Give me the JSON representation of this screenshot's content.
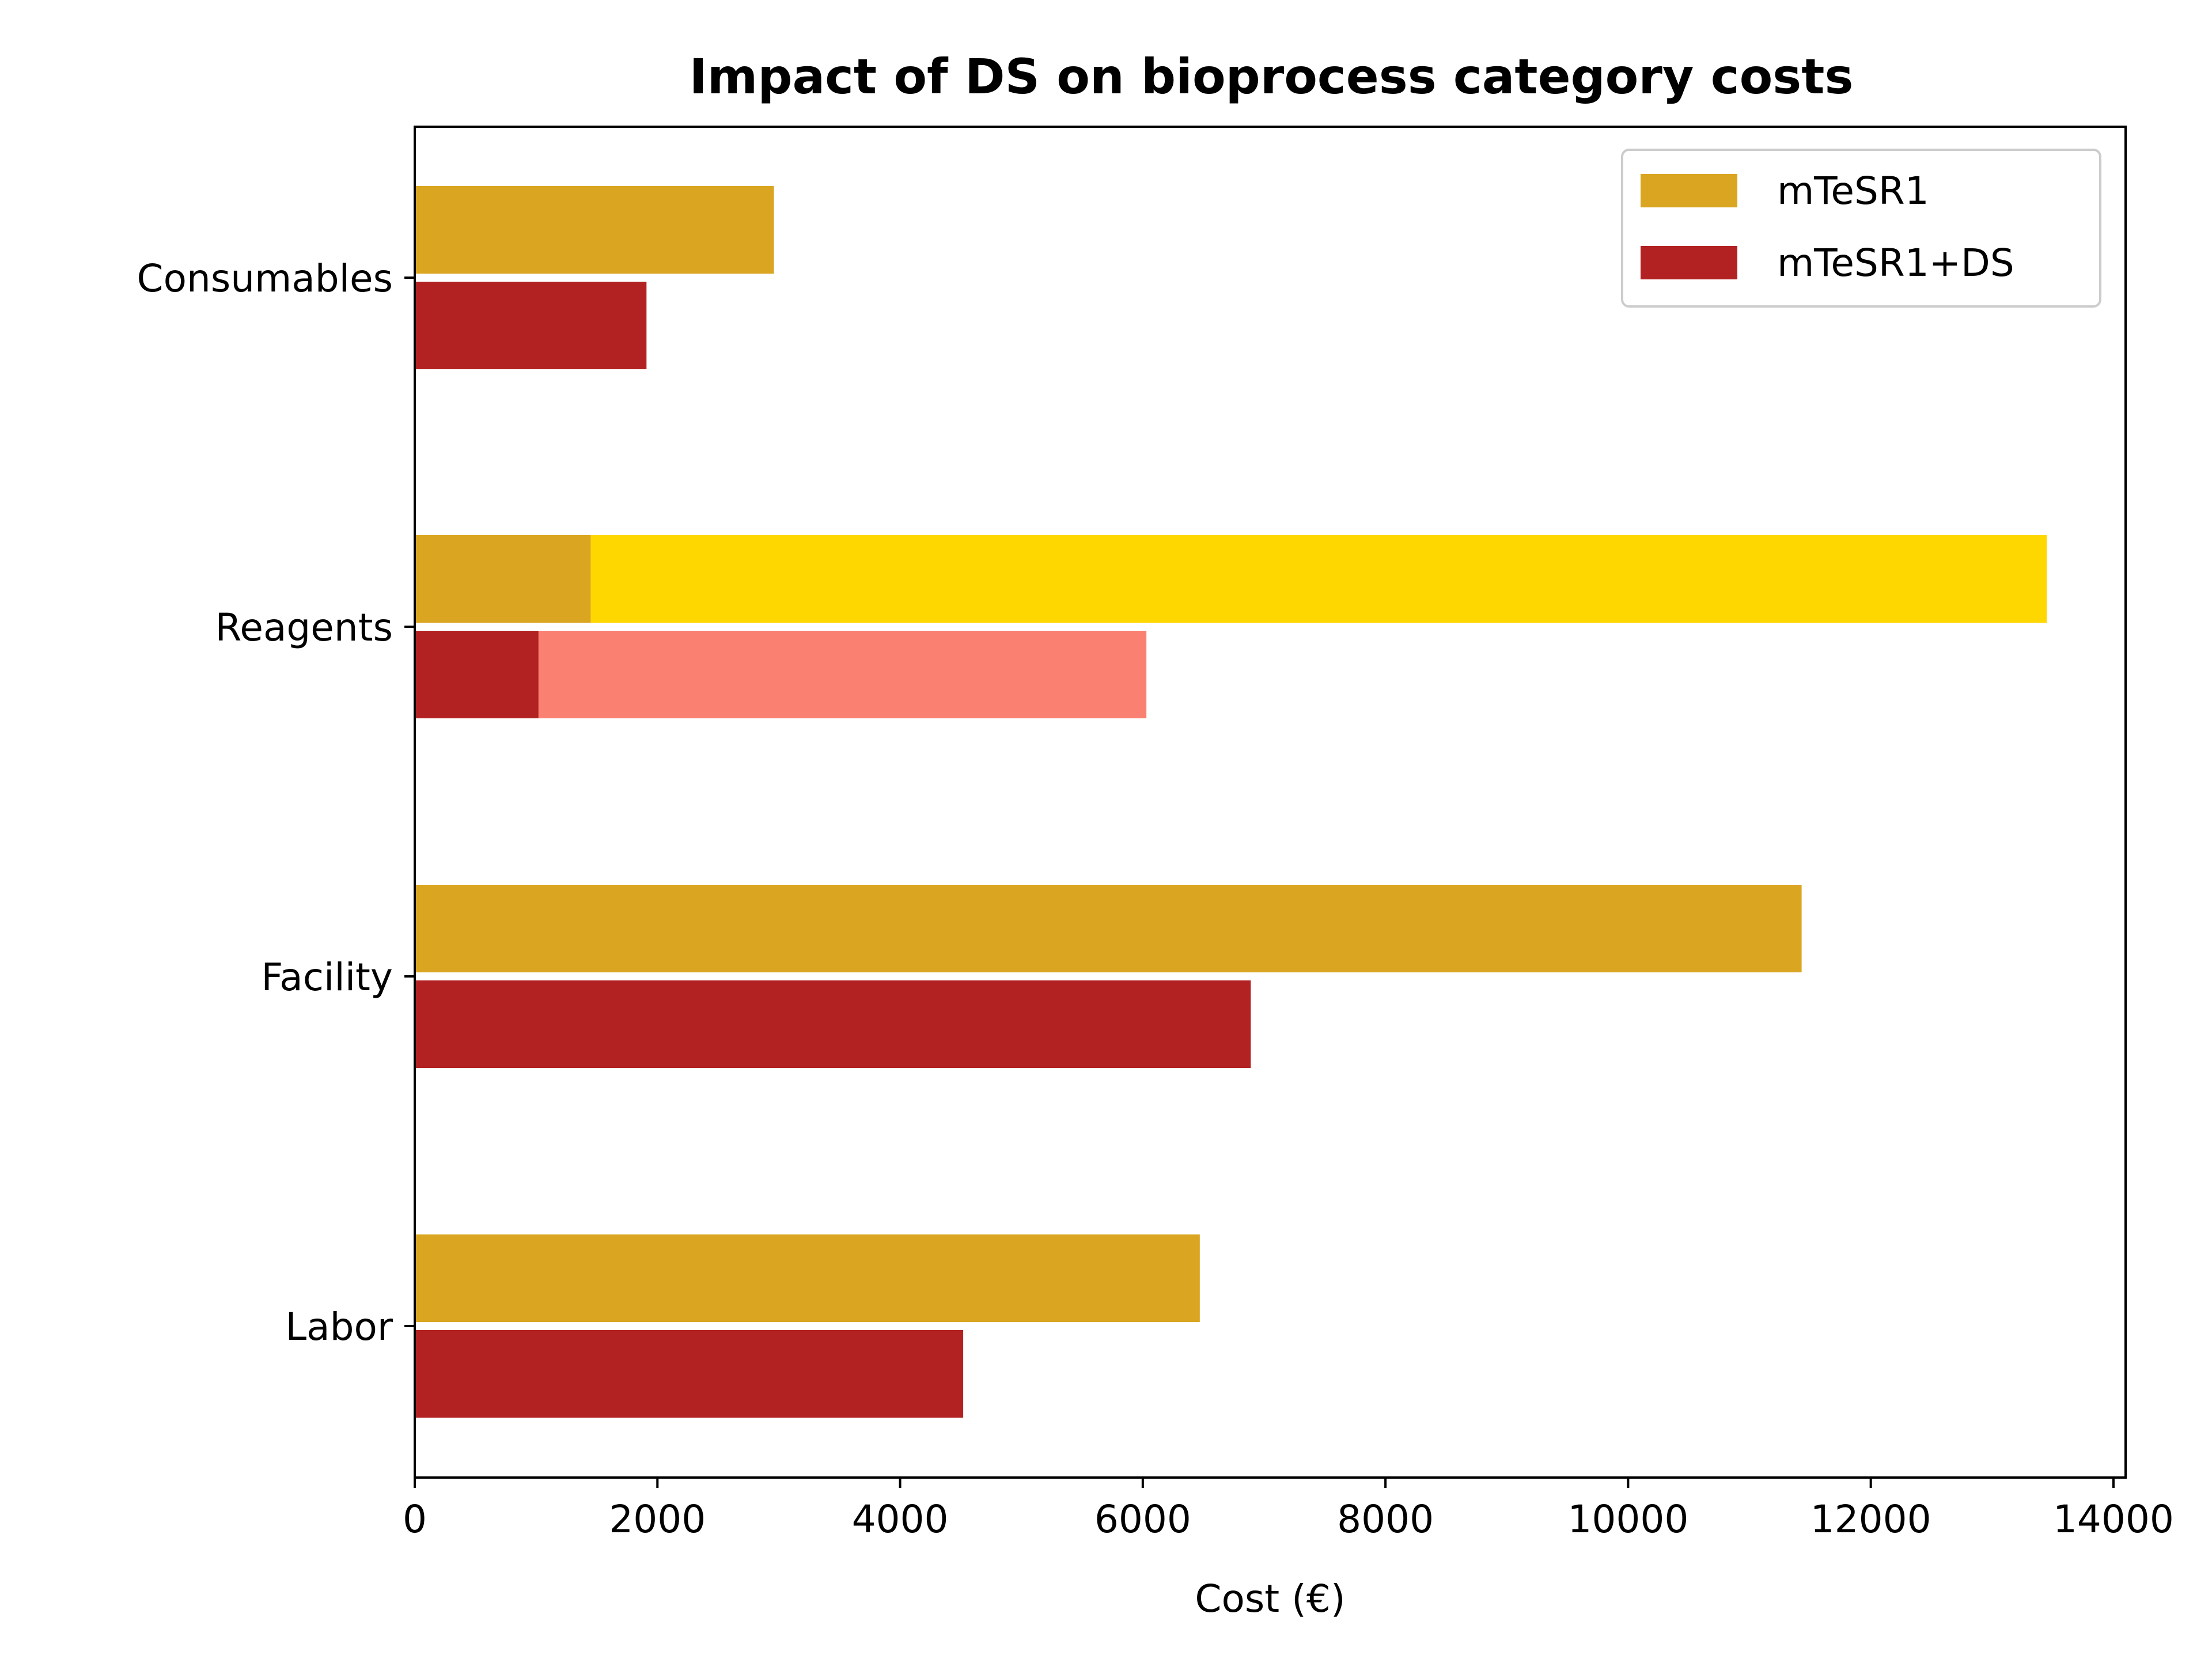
{
  "chart_data": {
    "type": "bar",
    "orientation": "horizontal",
    "title": "Impact of DS on bioprocess category costs",
    "xlabel": "Cost (€)",
    "ylabel": "",
    "xlim": [
      0,
      14100
    ],
    "xticks": [
      0,
      2000,
      4000,
      6000,
      8000,
      10000,
      12000,
      14000
    ],
    "xtick_labels": [
      "0",
      "2000",
      "4000",
      "6000",
      "8000",
      "10000",
      "12000",
      "14000"
    ],
    "categories": [
      "Consumables",
      "Reagents",
      "Facility",
      "Labor"
    ],
    "series": [
      {
        "name": "mTeSR1",
        "color": "#DAA520",
        "values": [
          2960,
          1450,
          11430,
          6470
        ],
        "extension": {
          "category": "Reagents",
          "from": 1450,
          "to": 13450,
          "color": "#FFD700"
        }
      },
      {
        "name": "mTeSR1+DS",
        "color": "#B22222",
        "values": [
          1910,
          1020,
          6890,
          4520
        ],
        "extension": {
          "category": "Reagents",
          "from": 1020,
          "to": 6030,
          "color": "#FA8072"
        }
      }
    ],
    "legend_position": "upper right",
    "grid": false
  }
}
